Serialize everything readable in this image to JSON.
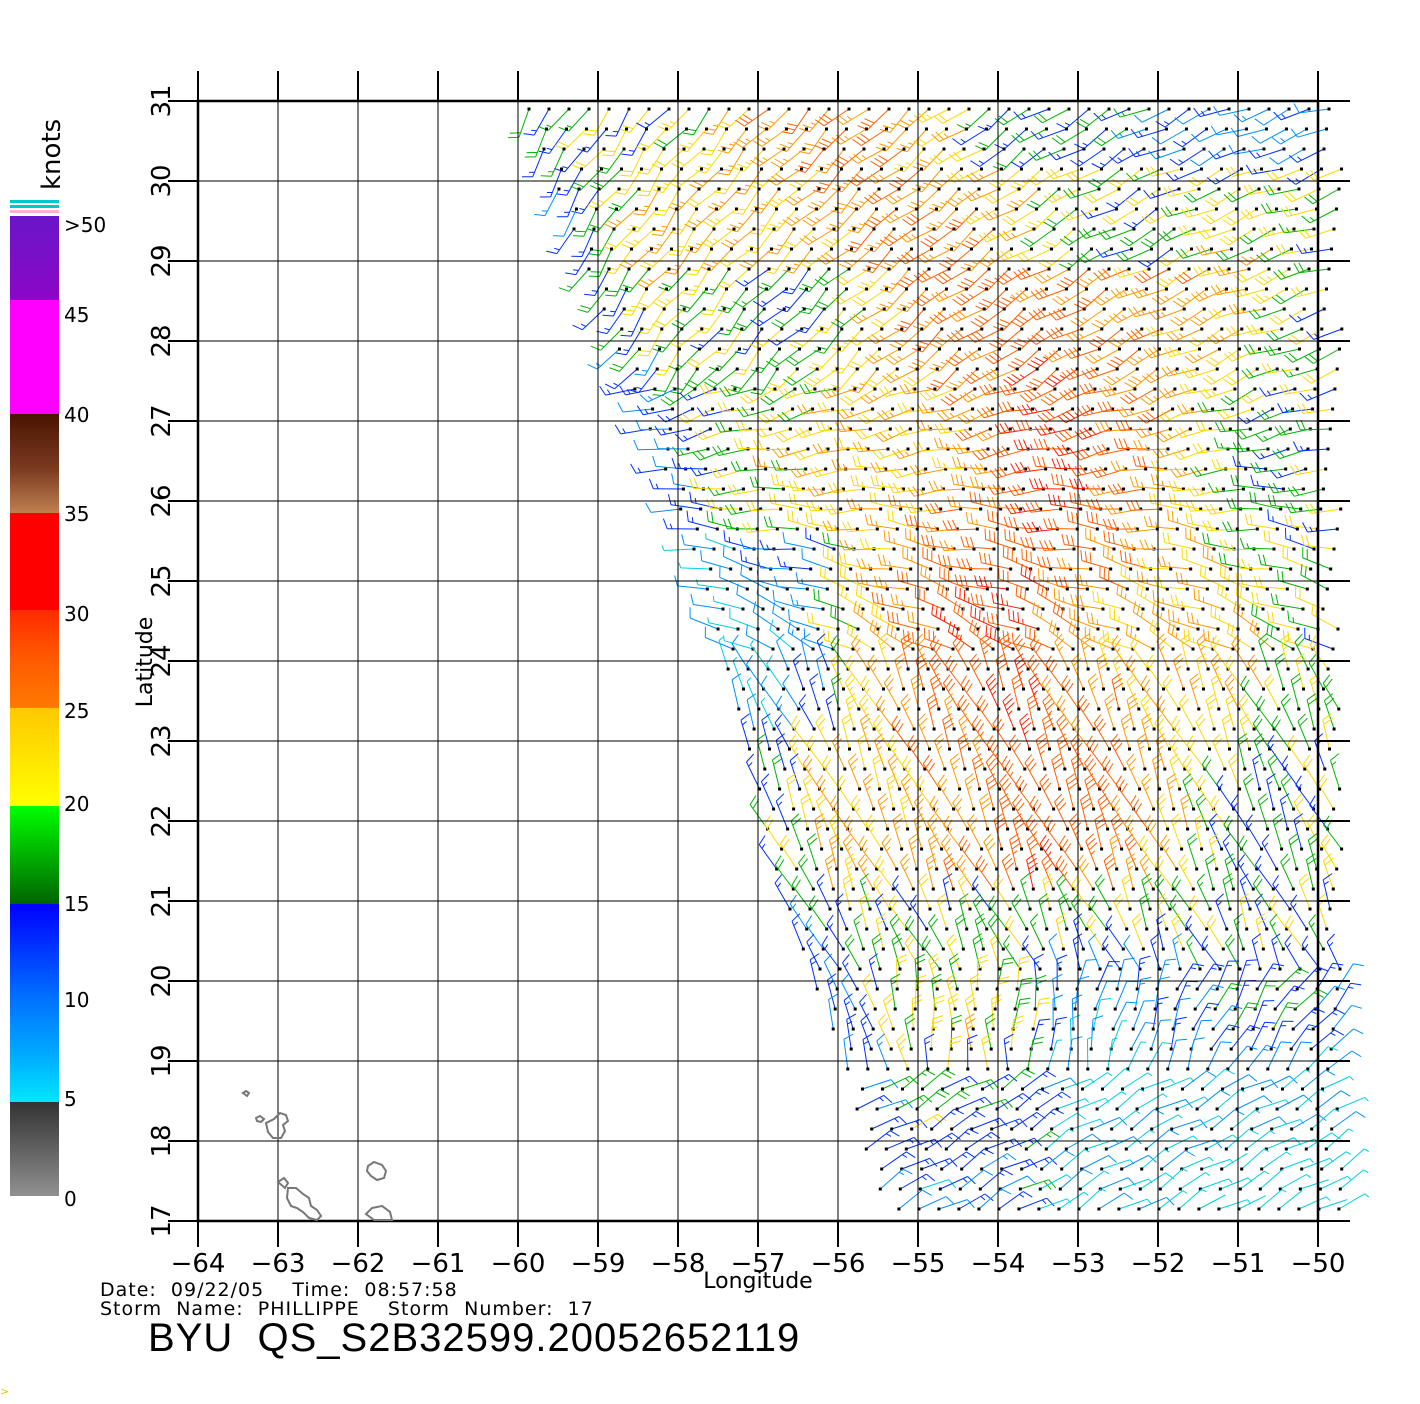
{
  "legend": {
    "title": "knots",
    "labels": [
      ">50",
      "45",
      "40",
      "35",
      "30",
      "25",
      "20",
      "15",
      "10",
      "5",
      "0"
    ],
    "colors": {
      "over50": "#6a16c8",
      "s45": "#ff00ff",
      "s40": "#4a1400",
      "s35": "#ff0000",
      "s30": "#ff7a00",
      "s25": "#ffff00",
      "s20": "#00ff00",
      "s15": "#0000ff",
      "s10": "#00e6ff",
      "s5": "#333333",
      "s0": "#909090"
    }
  },
  "axes": {
    "xlabel": "Longitude",
    "ylabel": "Latitude",
    "lon_ticks": [
      "-64",
      "-63",
      "-62",
      "-61",
      "-60",
      "-59",
      "-58",
      "-57",
      "-56",
      "-55",
      "-54",
      "-53",
      "-52",
      "-51",
      "-50"
    ],
    "lat_ticks": [
      "17",
      "18",
      "19",
      "20",
      "21",
      "22",
      "23",
      "24",
      "25",
      "26",
      "27",
      "28",
      "29",
      "30",
      "31"
    ],
    "lon_range": [
      -64,
      -50
    ],
    "lat_range": [
      17,
      31
    ],
    "grid": true
  },
  "info": {
    "date_line": "Date:  09/22/05    Time:  08:57:58",
    "storm_line": "Storm  Name:  PHILLIPPE    Storm  Number:  17",
    "product": "BYU  QS_S2B32599.20052652119"
  },
  "corner_mark": ">",
  "map": {
    "islands_icon": "coastline-outline",
    "swath_west_edge": [
      [
        -59.9,
        31
      ],
      [
        -59.0,
        28.6
      ],
      [
        -58.0,
        26.0
      ],
      [
        -57.6,
        24.8
      ],
      [
        -57.4,
        24.0
      ],
      [
        -57.0,
        22.5
      ],
      [
        -56.8,
        21.5
      ],
      [
        -56.3,
        20.0
      ],
      [
        -55.9,
        19.0
      ],
      [
        -55.6,
        17.7
      ],
      [
        -55.3,
        17
      ]
    ],
    "swath_east_edge": -49.7
  }
}
